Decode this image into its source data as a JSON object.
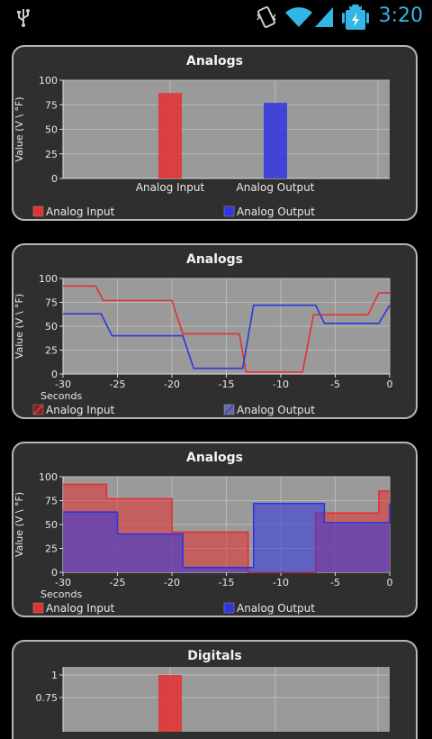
{
  "status_bar": {
    "time": "3:20",
    "icons": [
      "usb-icon",
      "vibrate-icon",
      "wifi-icon",
      "signal-icon",
      "battery-charging-icon"
    ],
    "accent": "#33b5e5"
  },
  "colors": {
    "input": "#e53030",
    "output": "#2f35e0",
    "plot_bg": "#9a9a9a",
    "grid": "#b9b9b9"
  },
  "charts": [
    {
      "title": "Analogs",
      "chart_data": {
        "type": "bar",
        "categories": [
          "Analog Input",
          "Analog Output"
        ],
        "series": [
          {
            "name": "Analog Input",
            "values": [
              87,
              null
            ]
          },
          {
            "name": "Analog Output",
            "values": [
              null,
              77
            ]
          }
        ],
        "ylabel": "Value (V \\ °F)",
        "ylim": [
          0,
          100
        ],
        "yticks": [
          "0",
          "25",
          "50",
          "75",
          "100"
        ],
        "legend": [
          "Analog Input",
          "Analog Output"
        ],
        "grid": true
      }
    },
    {
      "title": "Analogs",
      "chart_data": {
        "type": "line",
        "xlabel": "Seconds",
        "ylabel": "Value (V \\ °F)",
        "xlim": [
          -30,
          0
        ],
        "ylim": [
          0,
          100
        ],
        "xticks": [
          "-30",
          "-25",
          "-20",
          "-15",
          "-10",
          "-5",
          "0"
        ],
        "yticks": [
          "0",
          "25",
          "50",
          "75",
          "100"
        ],
        "series": [
          {
            "name": "Analog Input",
            "x": [
              -30,
              -27,
              -26.3,
              -20,
              -19,
              -13.8,
              -13.2,
              -8,
              -7,
              -2,
              -1,
              0
            ],
            "y": [
              92,
              92,
              77,
              77,
              42,
              42,
              2,
              2,
              62,
              62,
              85,
              85
            ]
          },
          {
            "name": "Analog Output",
            "x": [
              -30,
              -26.5,
              -25.5,
              -19,
              -18,
              -13.5,
              -12.5,
              -6.8,
              -6,
              -1,
              0
            ],
            "y": [
              63,
              63,
              40,
              40,
              6,
              6,
              72,
              72,
              53,
              53,
              72
            ]
          }
        ],
        "legend": [
          "Analog Input",
          "Analog Output"
        ],
        "grid": true
      }
    },
    {
      "title": "Analogs",
      "chart_data": {
        "type": "area",
        "xlabel": "Seconds",
        "ylabel": "Value (V \\ °F)",
        "xlim": [
          -30,
          0
        ],
        "ylim": [
          0,
          100
        ],
        "xticks": [
          "-30",
          "-25",
          "-20",
          "-15",
          "-10",
          "-5",
          "0"
        ],
        "yticks": [
          "0",
          "25",
          "50",
          "75",
          "100"
        ],
        "series": [
          {
            "name": "Analog Input",
            "x": [
              -30,
              -26,
              -26,
              -20,
              -20,
              -13,
              -13,
              -6.8,
              -6.8,
              -1,
              -1,
              0
            ],
            "y": [
              92,
              92,
              77,
              77,
              42,
              42,
              0,
              0,
              62,
              62,
              85,
              85
            ]
          },
          {
            "name": "Analog Output",
            "x": [
              -30,
              -25,
              -25,
              -19,
              -19,
              -12.5,
              -12.5,
              -6,
              -6,
              0,
              0
            ],
            "y": [
              63,
              63,
              40,
              40,
              5,
              5,
              72,
              72,
              52,
              52,
              72
            ]
          }
        ],
        "legend": [
          "Analog Input",
          "Analog Output"
        ],
        "grid": true
      }
    },
    {
      "title": "Digitals",
      "chart_data": {
        "type": "bar",
        "ylabel": "",
        "ylim": [
          0,
          1
        ],
        "yticks": [
          "0.75",
          "1"
        ],
        "series": [
          {
            "name": "",
            "values": [
              1
            ]
          }
        ],
        "grid": true
      }
    }
  ]
}
